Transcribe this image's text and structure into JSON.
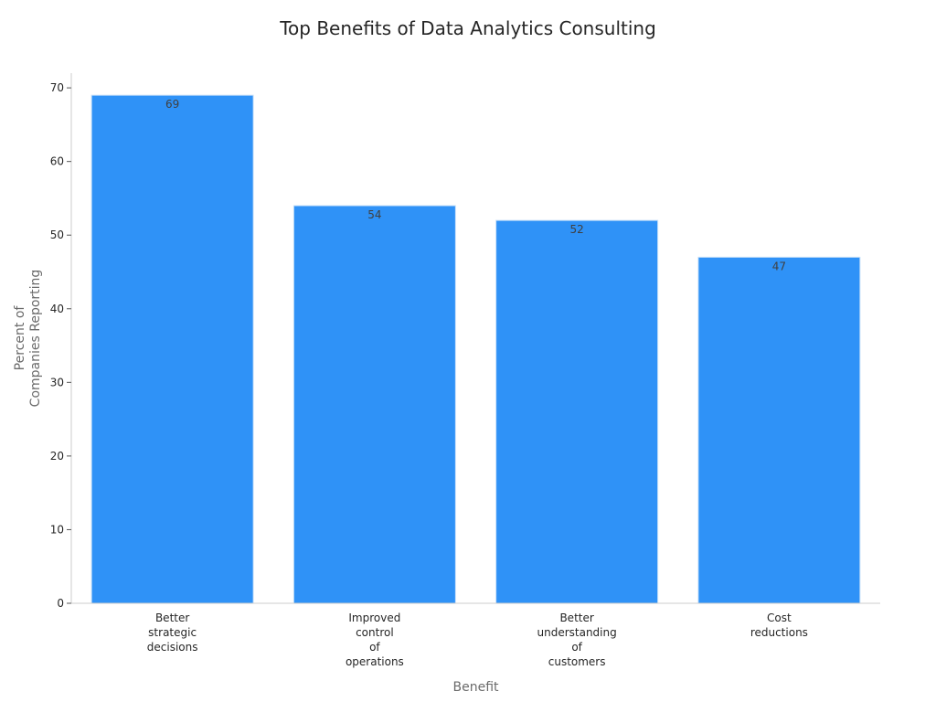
{
  "chart_data": {
    "type": "bar",
    "title": "Top Benefits of Data Analytics Consulting",
    "xlabel": "Benefit",
    "ylabel": [
      "Percent of",
      "Companies Reporting"
    ],
    "categories": [
      [
        "Better",
        "strategic",
        "decisions"
      ],
      [
        "Improved",
        "control",
        "of",
        "operations"
      ],
      [
        "Better",
        "understanding",
        "of",
        "customers"
      ],
      [
        "Cost",
        "reductions"
      ]
    ],
    "values": [
      69,
      54,
      52,
      47
    ],
    "ylim": [
      0,
      72
    ],
    "yticks": [
      0,
      10,
      20,
      30,
      40,
      50,
      60,
      70
    ],
    "bar_color": "#2f92f7",
    "bar_edge_color": "#c9e1f9",
    "grid": false,
    "legend": "none"
  }
}
